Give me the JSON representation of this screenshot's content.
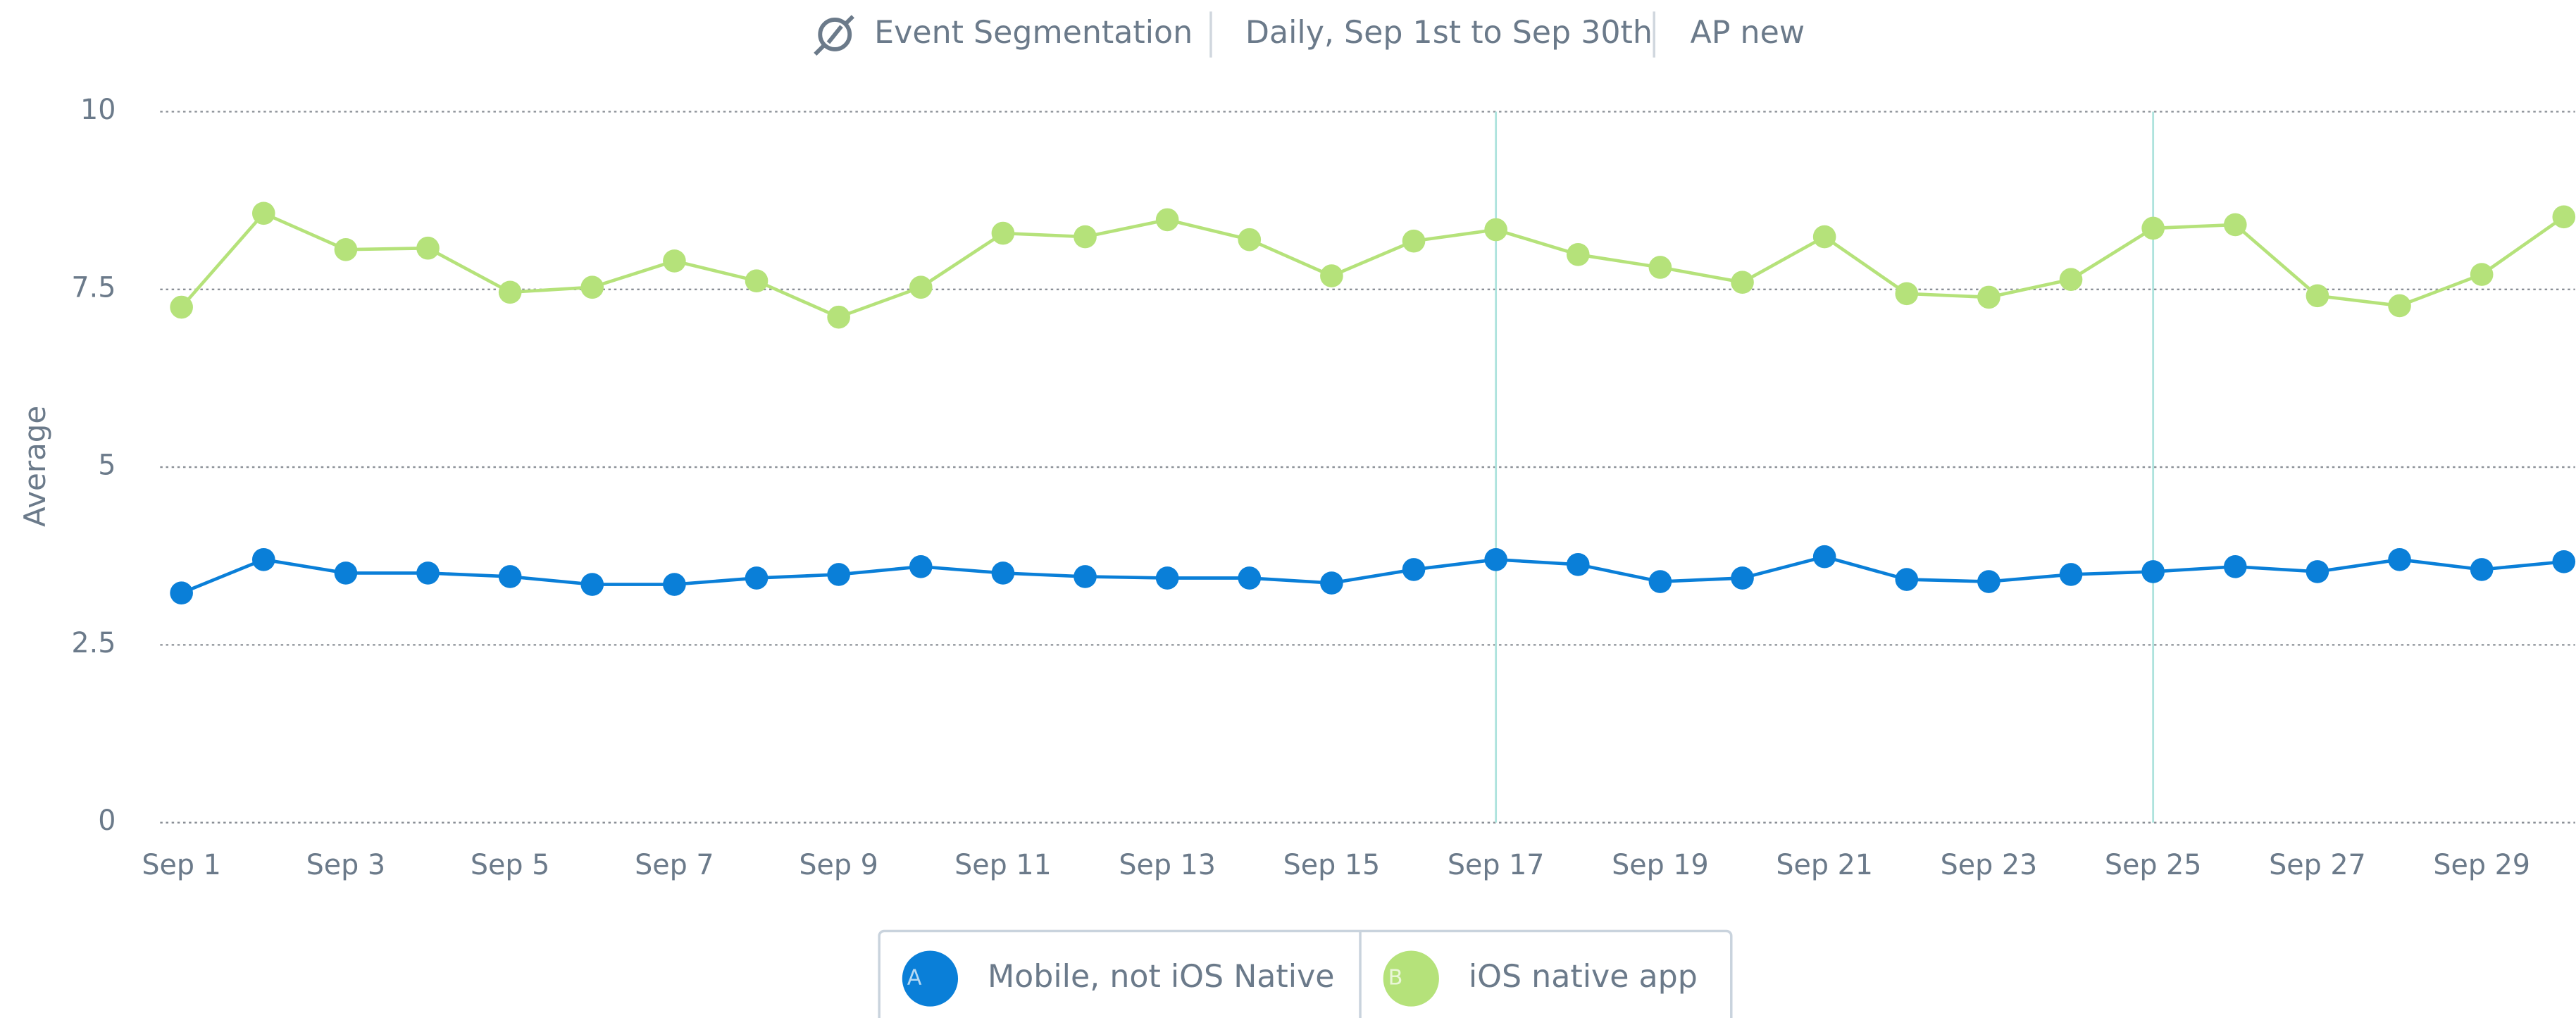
{
  "header": {
    "report": "Event Segmentation",
    "range": "Daily, Sep 1st to Sep 30th",
    "project": "AP new"
  },
  "chart_data": {
    "type": "line",
    "ylabel": "Average",
    "categories": [
      "Sep 1",
      null,
      "Sep 3",
      null,
      "Sep 5",
      null,
      "Sep 7",
      null,
      "Sep 9",
      null,
      "Sep 11",
      null,
      "Sep 13",
      null,
      "Sep 15",
      null,
      "Sep 17",
      null,
      "Sep 19",
      null,
      "Sep 21",
      null,
      "Sep 23",
      null,
      "Sep 25",
      null,
      "Sep 27",
      null,
      "Sep 29",
      null
    ],
    "series": [
      {
        "letter": "A",
        "name": "Mobile, not iOS Native",
        "color": "#0a7fd8",
        "values": [
          3.23,
          3.7,
          3.51,
          3.51,
          3.46,
          3.35,
          3.35,
          3.44,
          3.49,
          3.6,
          3.51,
          3.46,
          3.44,
          3.44,
          3.37,
          3.56,
          3.7,
          3.63,
          3.39,
          3.44,
          3.74,
          3.42,
          3.39,
          3.49,
          3.53,
          3.6,
          3.53,
          3.7,
          3.56,
          3.67
        ]
      },
      {
        "letter": "B",
        "name": "iOS native app",
        "color": "#b5e27a",
        "values": [
          7.25,
          8.57,
          8.06,
          8.08,
          7.46,
          7.53,
          7.9,
          7.62,
          7.11,
          7.53,
          8.29,
          8.24,
          8.48,
          8.2,
          7.69,
          8.18,
          8.34,
          7.99,
          7.81,
          7.6,
          8.24,
          7.44,
          7.39,
          7.64,
          8.36,
          8.41,
          7.41,
          7.27,
          7.71,
          8.52
        ]
      }
    ],
    "markers": [
      "Sep 17",
      "Sep 25"
    ],
    "ylim": [
      0,
      10
    ],
    "yticks": [
      0,
      2.5,
      5,
      7.5,
      10
    ],
    "grid": true
  }
}
